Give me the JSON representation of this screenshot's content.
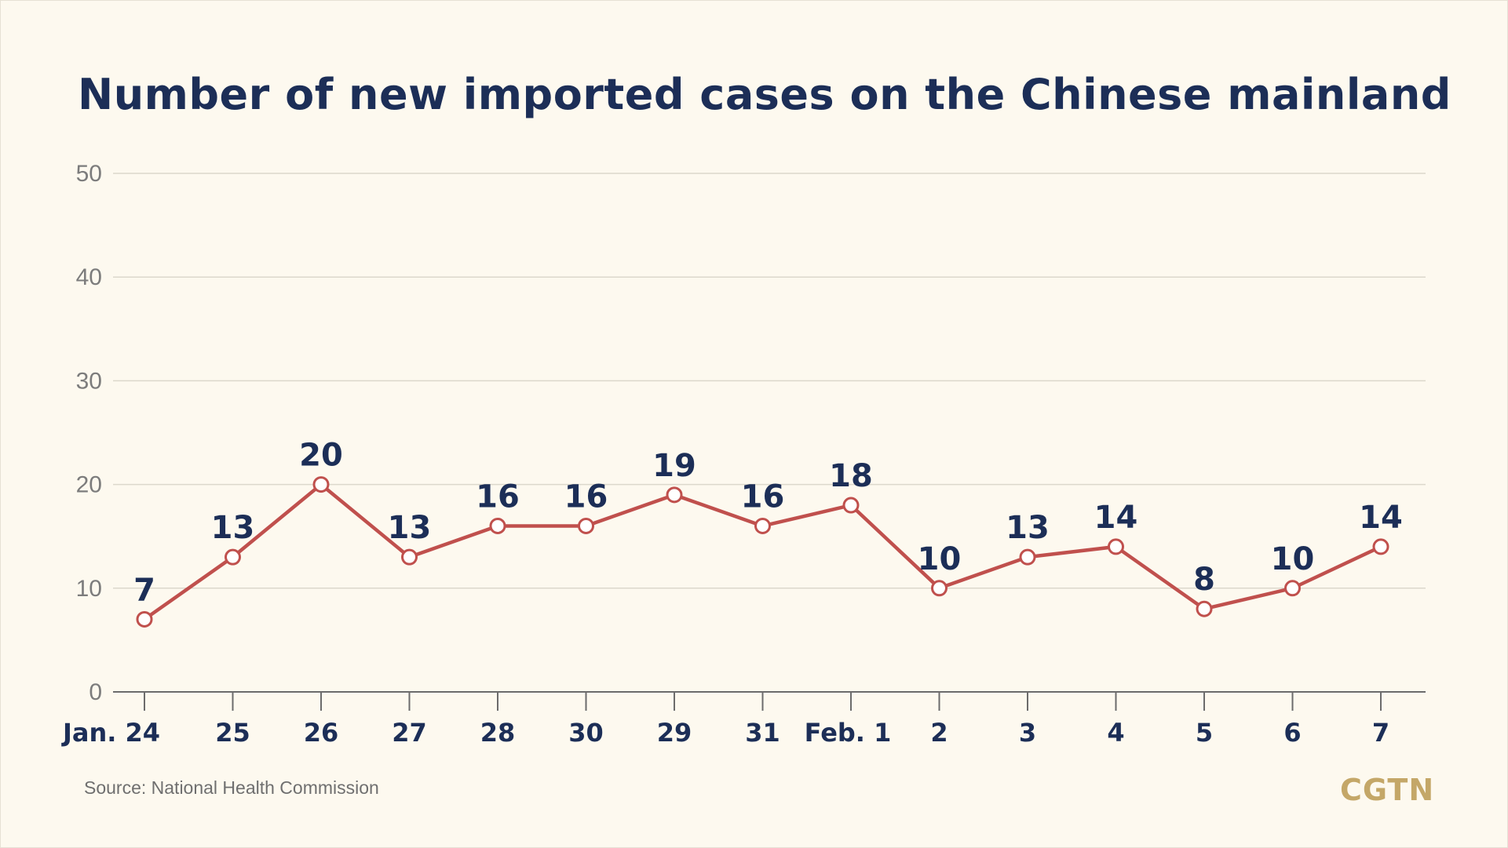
{
  "chart_data": {
    "type": "line",
    "title": "Number of new imported cases on the Chinese mainland",
    "categories": [
      "Jan. 24",
      "25",
      "26",
      "27",
      "28",
      "30",
      "29",
      "31",
      "Feb. 1",
      "2",
      "3",
      "4",
      "5",
      "6",
      "7"
    ],
    "values": [
      7,
      13,
      20,
      13,
      16,
      16,
      19,
      16,
      18,
      10,
      13,
      14,
      8,
      10,
      14
    ],
    "ylim": [
      0,
      50
    ],
    "yticks": [
      "0",
      "10",
      "20",
      "30",
      "40",
      "50"
    ],
    "grid": true,
    "line_color": "#c0504d",
    "label_color": "#1c2e57"
  },
  "source": "Source: National Health Commission",
  "logo": "CGTN"
}
